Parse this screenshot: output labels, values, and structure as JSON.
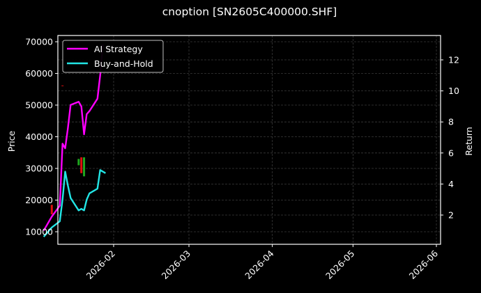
{
  "chart_data": {
    "type": "line",
    "title": "cnoption [SN2605C400000.SHF]",
    "xlabel": "",
    "ylabel_left": "Price",
    "ylabel_right": "Return",
    "x_tick_labels": [
      "2026-02",
      "2026-03",
      "2026-04",
      "2026-05",
      "2026-06"
    ],
    "y_left_ticks": [
      10000,
      20000,
      30000,
      40000,
      50000,
      60000,
      70000
    ],
    "y_right_ticks": [
      2,
      4,
      6,
      8,
      10,
      12
    ],
    "ylim_left": [
      6000,
      72000
    ],
    "ylim_right": [
      0.2,
      13.6
    ],
    "grid": true,
    "legend_position": "upper left",
    "legend": [
      "AI Strategy",
      "Buy-and-Hold"
    ],
    "colors": {
      "ai_strategy": "#ff00ff",
      "buy_and_hold": "#22e5e5",
      "candle_up": "#1fa81f",
      "candle_down": "#e01010",
      "background": "#000000",
      "grid": "#444444"
    },
    "series": [
      {
        "name": "AI Strategy",
        "axis": "right",
        "x": [
          "2026-01-06",
          "2026-01-09",
          "2026-01-12",
          "2026-01-13",
          "2026-01-14",
          "2026-01-15",
          "2026-01-16",
          "2026-01-19",
          "2026-01-20",
          "2026-01-21",
          "2026-01-22",
          "2026-01-23",
          "2026-01-26",
          "2026-01-27",
          "2026-01-28"
        ],
        "values": [
          1.0,
          1.9,
          2.6,
          6.6,
          6.3,
          7.6,
          9.1,
          9.3,
          9.0,
          7.2,
          8.5,
          8.7,
          9.5,
          11.0,
          13.0
        ]
      },
      {
        "name": "Buy-and-Hold",
        "axis": "right",
        "x": [
          "2026-01-06",
          "2026-01-09",
          "2026-01-12",
          "2026-01-13",
          "2026-01-14",
          "2026-01-15",
          "2026-01-16",
          "2026-01-19",
          "2026-01-20",
          "2026-01-21",
          "2026-01-22",
          "2026-01-23",
          "2026-01-26",
          "2026-01-27",
          "2026-01-29"
        ],
        "values": [
          0.6,
          1.2,
          1.6,
          3.0,
          4.8,
          3.9,
          3.1,
          2.3,
          2.4,
          2.3,
          3.0,
          3.4,
          3.7,
          4.9,
          4.7
        ]
      }
    ],
    "candles_approx": [
      {
        "x": "2026-01-09",
        "open": 15500,
        "close": 18500,
        "color": "red"
      },
      {
        "x": "2026-01-13",
        "open": 56000,
        "close": 56200,
        "color": "red"
      },
      {
        "x": "2026-01-19",
        "open": 31000,
        "close": 33000,
        "color": "green"
      },
      {
        "x": "2026-01-20",
        "open": 28500,
        "close": 33500,
        "color": "red"
      },
      {
        "x": "2026-01-21",
        "open": 27500,
        "close": 33500,
        "color": "green"
      }
    ]
  }
}
